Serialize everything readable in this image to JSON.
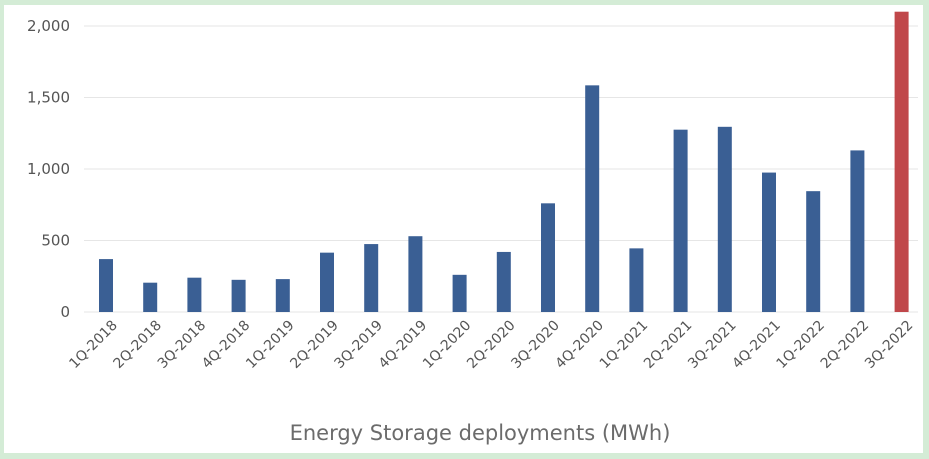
{
  "chart_data": {
    "type": "bar",
    "categories": [
      "1Q-2018",
      "2Q-2018",
      "3Q-2018",
      "4Q-2018",
      "1Q-2019",
      "2Q-2019",
      "3Q-2019",
      "4Q-2019",
      "1Q-2020",
      "2Q-2020",
      "3Q-2020",
      "4Q-2020",
      "1Q-2021",
      "2Q-2021",
      "3Q-2021",
      "4Q-2021",
      "1Q-2022",
      "2Q-2022",
      "3Q-2022"
    ],
    "values": [
      370,
      205,
      240,
      225,
      230,
      415,
      475,
      530,
      260,
      420,
      760,
      1585,
      445,
      1275,
      1295,
      975,
      845,
      1130,
      2100
    ],
    "highlight_index": 18,
    "colors": {
      "bar": "#3a5f94",
      "highlight": "#c0474a",
      "grid": "#e6e6e6"
    },
    "title": "",
    "xlabel": "Energy Storage deployments (MWh)",
    "ylabel": "",
    "ylim": [
      0,
      2000
    ],
    "yticks": [
      0,
      500,
      1000,
      1500,
      2000
    ],
    "ytick_labels": [
      "0",
      "500",
      "1,000",
      "1,500",
      "2,000"
    ],
    "grid": true,
    "legend": "none"
  }
}
